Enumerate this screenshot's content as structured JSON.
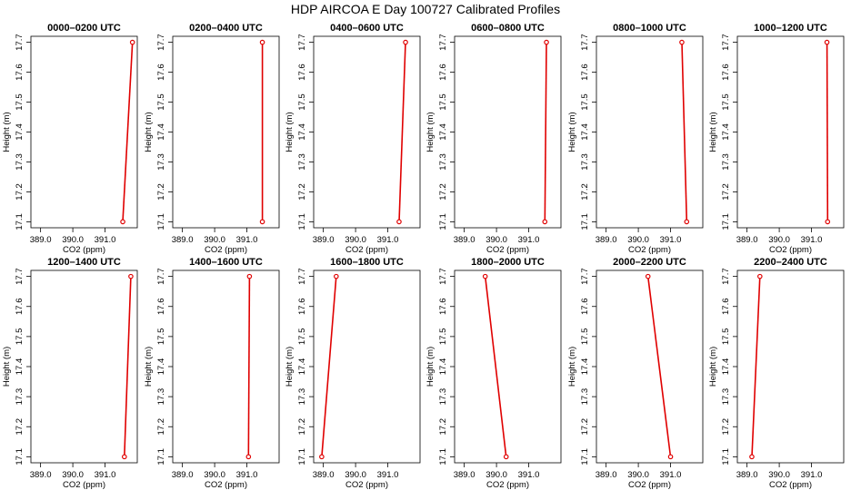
{
  "title": "HDP AIRCOA E  Day 100727  Calibrated Profiles",
  "colors": {
    "series": "#e00000",
    "axis": "#000000"
  },
  "chart_data": [
    {
      "type": "line",
      "title": "0000–0200 UTC",
      "xlabel": "CO2 (ppm)",
      "ylabel": "Height (m)",
      "xticks": [
        "389.0",
        "390.0",
        "391.0"
      ],
      "yticks": [
        "17.1",
        "17.2",
        "17.3",
        "17.4",
        "17.5",
        "17.6",
        "17.7"
      ],
      "grid": false,
      "x": [
        391.55,
        391.85
      ],
      "y": [
        17.1,
        17.7
      ]
    },
    {
      "type": "line",
      "title": "0200–0400 UTC",
      "xlabel": "CO2 (ppm)",
      "ylabel": "Height (m)",
      "xticks": [
        "389.0",
        "390.0",
        "391.0"
      ],
      "yticks": [
        "17.1",
        "17.2",
        "17.3",
        "17.4",
        "17.5",
        "17.6",
        "17.7"
      ],
      "grid": false,
      "x": [
        391.48,
        391.48
      ],
      "y": [
        17.1,
        17.7
      ]
    },
    {
      "type": "line",
      "title": "0400–0600 UTC",
      "xlabel": "CO2 (ppm)",
      "ylabel": "Height (m)",
      "xticks": [
        "389.0",
        "390.0",
        "391.0"
      ],
      "yticks": [
        "17.1",
        "17.2",
        "17.3",
        "17.4",
        "17.5",
        "17.6",
        "17.7"
      ],
      "grid": false,
      "x": [
        391.35,
        391.55
      ],
      "y": [
        17.1,
        17.7
      ]
    },
    {
      "type": "line",
      "title": "0600–0800 UTC",
      "xlabel": "CO2 (ppm)",
      "ylabel": "Height (m)",
      "xticks": [
        "389.0",
        "390.0",
        "391.0"
      ],
      "yticks": [
        "17.1",
        "17.2",
        "17.3",
        "17.4",
        "17.5",
        "17.6",
        "17.7"
      ],
      "grid": false,
      "x": [
        391.5,
        391.55
      ],
      "y": [
        17.1,
        17.7
      ]
    },
    {
      "type": "line",
      "title": "0800–1000 UTC",
      "xlabel": "CO2 (ppm)",
      "ylabel": "Height (m)",
      "xticks": [
        "389.0",
        "390.0",
        "391.0"
      ],
      "yticks": [
        "17.1",
        "17.2",
        "17.3",
        "17.4",
        "17.5",
        "17.6",
        "17.7"
      ],
      "grid": false,
      "x": [
        391.5,
        391.35
      ],
      "y": [
        17.1,
        17.7
      ]
    },
    {
      "type": "line",
      "title": "1000–1200 UTC",
      "xlabel": "CO2 (ppm)",
      "ylabel": "Height (m)",
      "xticks": [
        "389.0",
        "390.0",
        "391.0"
      ],
      "yticks": [
        "17.1",
        "17.2",
        "17.3",
        "17.4",
        "17.5",
        "17.6",
        "17.7"
      ],
      "grid": false,
      "x": [
        391.5,
        391.48
      ],
      "y": [
        17.1,
        17.7
      ]
    },
    {
      "type": "line",
      "title": "1200–1400 UTC",
      "xlabel": "CO2 (ppm)",
      "ylabel": "Height (m)",
      "xticks": [
        "389.0",
        "390.0",
        "391.0"
      ],
      "yticks": [
        "17.1",
        "17.2",
        "17.3",
        "17.4",
        "17.5",
        "17.6",
        "17.7"
      ],
      "grid": false,
      "x": [
        391.6,
        391.8
      ],
      "y": [
        17.1,
        17.7
      ]
    },
    {
      "type": "line",
      "title": "1400–1600 UTC",
      "xlabel": "CO2 (ppm)",
      "ylabel": "Height (m)",
      "xticks": [
        "389.0",
        "390.0",
        "391.0"
      ],
      "yticks": [
        "17.1",
        "17.2",
        "17.3",
        "17.4",
        "17.5",
        "17.6",
        "17.7"
      ],
      "grid": false,
      "x": [
        391.05,
        391.08
      ],
      "y": [
        17.1,
        17.7
      ]
    },
    {
      "type": "line",
      "title": "1600–1800 UTC",
      "xlabel": "CO2 (ppm)",
      "ylabel": "Height (m)",
      "xticks": [
        "389.0",
        "390.0",
        "391.0"
      ],
      "yticks": [
        "17.1",
        "17.2",
        "17.3",
        "17.4",
        "17.5",
        "17.6",
        "17.7"
      ],
      "grid": false,
      "x": [
        388.95,
        389.4
      ],
      "y": [
        17.1,
        17.7
      ]
    },
    {
      "type": "line",
      "title": "1800–2000 UTC",
      "xlabel": "CO2 (ppm)",
      "ylabel": "Height (m)",
      "xticks": [
        "389.0",
        "390.0",
        "391.0"
      ],
      "yticks": [
        "17.1",
        "17.2",
        "17.3",
        "17.4",
        "17.5",
        "17.6",
        "17.7"
      ],
      "grid": false,
      "x": [
        390.3,
        389.65
      ],
      "y": [
        17.1,
        17.7
      ]
    },
    {
      "type": "line",
      "title": "2000–2200 UTC",
      "xlabel": "CO2 (ppm)",
      "ylabel": "Height (m)",
      "xticks": [
        "389.0",
        "390.0",
        "391.0"
      ],
      "yticks": [
        "17.1",
        "17.2",
        "17.3",
        "17.4",
        "17.5",
        "17.6",
        "17.7"
      ],
      "grid": false,
      "x": [
        391.0,
        390.3
      ],
      "y": [
        17.1,
        17.7
      ]
    },
    {
      "type": "line",
      "title": "2200–2400 UTC",
      "xlabel": "CO2 (ppm)",
      "ylabel": "Height (m)",
      "xticks": [
        "389.0",
        "390.0",
        "391.0"
      ],
      "yticks": [
        "17.1",
        "17.2",
        "17.3",
        "17.4",
        "17.5",
        "17.6",
        "17.7"
      ],
      "grid": false,
      "x": [
        389.15,
        389.4
      ],
      "y": [
        17.1,
        17.7
      ]
    }
  ]
}
